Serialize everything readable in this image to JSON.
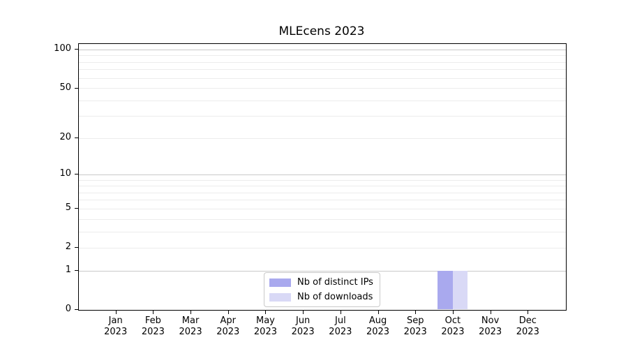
{
  "title": "MLEcens 2023",
  "chart_data": {
    "type": "bar",
    "title": "MLEcens 2023",
    "xlabel": "",
    "ylabel": "",
    "categories": [
      "Jan 2023",
      "Feb 2023",
      "Mar 2023",
      "Apr 2023",
      "May 2023",
      "Jun 2023",
      "Jul 2023",
      "Aug 2023",
      "Sep 2023",
      "Oct 2023",
      "Nov 2023",
      "Dec 2023"
    ],
    "series": [
      {
        "name": "Nb of distinct IPs",
        "color": "#a9a9ee",
        "values": [
          0,
          0,
          0,
          0,
          0,
          0,
          0,
          0,
          0,
          1,
          0,
          0
        ]
      },
      {
        "name": "Nb of downloads",
        "color": "#d9d9f6",
        "values": [
          0,
          0,
          0,
          0,
          0,
          0,
          0,
          0,
          0,
          1,
          0,
          0
        ]
      }
    ],
    "y_scale": "log1p",
    "ylim": [
      0,
      111
    ],
    "y_ticks": [
      0,
      1,
      2,
      5,
      10,
      20,
      50,
      100
    ],
    "y_gridlines": [
      1,
      2,
      3,
      4,
      5,
      6,
      7,
      8,
      9,
      10,
      20,
      30,
      40,
      50,
      60,
      70,
      80,
      90,
      100
    ],
    "y_decade_lines": [
      1,
      10,
      100
    ],
    "grid": true,
    "legend_position": "lower center"
  },
  "colors": {
    "background": "#ffffff",
    "spine": "#000000",
    "grid_minor": "#ececec",
    "grid_major": "#c9c9c9",
    "text": "#000000",
    "legend_border": "#c9c9c9"
  }
}
